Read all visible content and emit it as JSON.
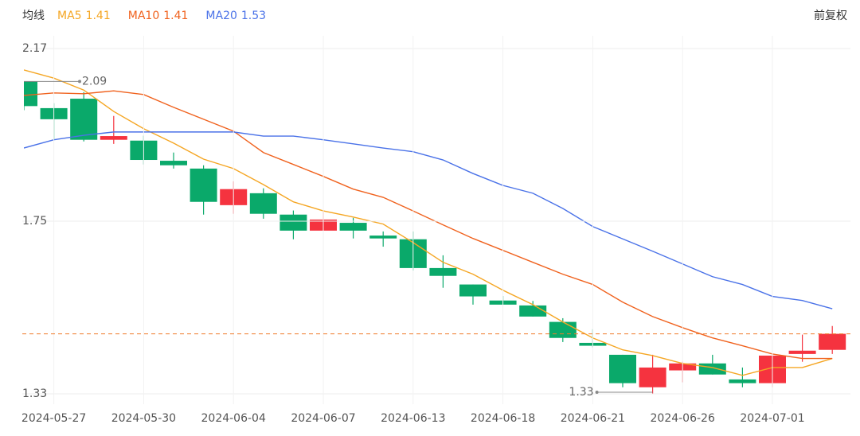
{
  "chart_data": {
    "type": "candlestick",
    "ma_title": "均线",
    "adjust_label": "前复权",
    "categories": [
      null,
      "2024-05-27",
      null,
      null,
      "2024-05-30",
      null,
      null,
      "2024-06-04",
      null,
      null,
      "2024-06-07",
      null,
      null,
      "2024-06-13",
      null,
      null,
      "2024-06-18",
      null,
      null,
      "2024-06-21",
      null,
      null,
      "2024-06-26",
      null,
      null,
      "2024-07-01",
      null,
      null
    ],
    "open": [
      2.09,
      2.025,
      2.048,
      1.948,
      1.946,
      1.897,
      1.878,
      1.789,
      1.818,
      1.766,
      1.727,
      1.746,
      1.715,
      1.706,
      1.636,
      1.596,
      1.557,
      1.545,
      1.505,
      1.454,
      1.425,
      1.346,
      1.387,
      1.404,
      1.365,
      1.356,
      1.427,
      1.437
    ],
    "high": [
      2.09,
      2.037,
      2.064,
      2.006,
      1.958,
      1.917,
      1.886,
      1.847,
      1.83,
      1.776,
      1.773,
      1.758,
      1.725,
      1.725,
      1.667,
      1.596,
      1.568,
      1.556,
      1.514,
      1.487,
      1.425,
      1.425,
      1.408,
      1.425,
      1.394,
      1.423,
      1.474,
      1.495
    ],
    "low": [
      2.02,
      1.948,
      1.944,
      1.938,
      1.888,
      1.878,
      1.766,
      1.768,
      1.756,
      1.706,
      1.727,
      1.708,
      1.688,
      1.63,
      1.588,
      1.547,
      1.547,
      1.518,
      1.456,
      1.443,
      1.346,
      1.33,
      1.358,
      1.377,
      1.346,
      1.346,
      1.408,
      1.427
    ],
    "close": [
      2.03,
      1.998,
      1.948,
      1.957,
      1.899,
      1.886,
      1.797,
      1.828,
      1.768,
      1.727,
      1.754,
      1.727,
      1.708,
      1.636,
      1.617,
      1.567,
      1.547,
      1.518,
      1.466,
      1.447,
      1.356,
      1.394,
      1.404,
      1.377,
      1.356,
      1.423,
      1.435,
      1.476
    ],
    "up_color": "#f5333f",
    "down_color": "#0aa96a",
    "last_line_color": "#f07b2a",
    "series": [
      {
        "name": "MA5",
        "legend_value": "1.41",
        "color": "#f5a623",
        "values": [
          2.118,
          2.098,
          2.069,
          2.017,
          1.975,
          1.94,
          1.901,
          1.878,
          1.839,
          1.797,
          1.775,
          1.76,
          1.743,
          1.698,
          1.65,
          1.621,
          1.582,
          1.547,
          1.505,
          1.466,
          1.437,
          1.423,
          1.404,
          1.394,
          1.375,
          1.394,
          1.394,
          1.416
        ]
      },
      {
        "name": "MA10",
        "legend_value": "1.41",
        "color": "#f0621e",
        "values": [
          2.056,
          2.062,
          2.06,
          2.067,
          2.058,
          2.027,
          1.998,
          1.969,
          1.917,
          1.888,
          1.859,
          1.828,
          1.808,
          1.775,
          1.741,
          1.708,
          1.679,
          1.65,
          1.621,
          1.596,
          1.553,
          1.518,
          1.491,
          1.466,
          1.447,
          1.427,
          1.416,
          1.416
        ]
      },
      {
        "name": "MA20",
        "legend_value": "1.53",
        "color": "#4a72e8",
        "values": [
          1.928,
          1.948,
          1.959,
          1.967,
          1.967,
          1.967,
          1.967,
          1.967,
          1.957,
          1.957,
          1.948,
          1.938,
          1.928,
          1.919,
          1.899,
          1.866,
          1.837,
          1.818,
          1.781,
          1.737,
          1.707,
          1.677,
          1.646,
          1.615,
          1.596,
          1.567,
          1.557,
          1.537
        ]
      }
    ],
    "ylim": [
      1.33,
      2.17
    ],
    "yticks": [
      1.33,
      1.75,
      2.17
    ],
    "grid": true
  }
}
